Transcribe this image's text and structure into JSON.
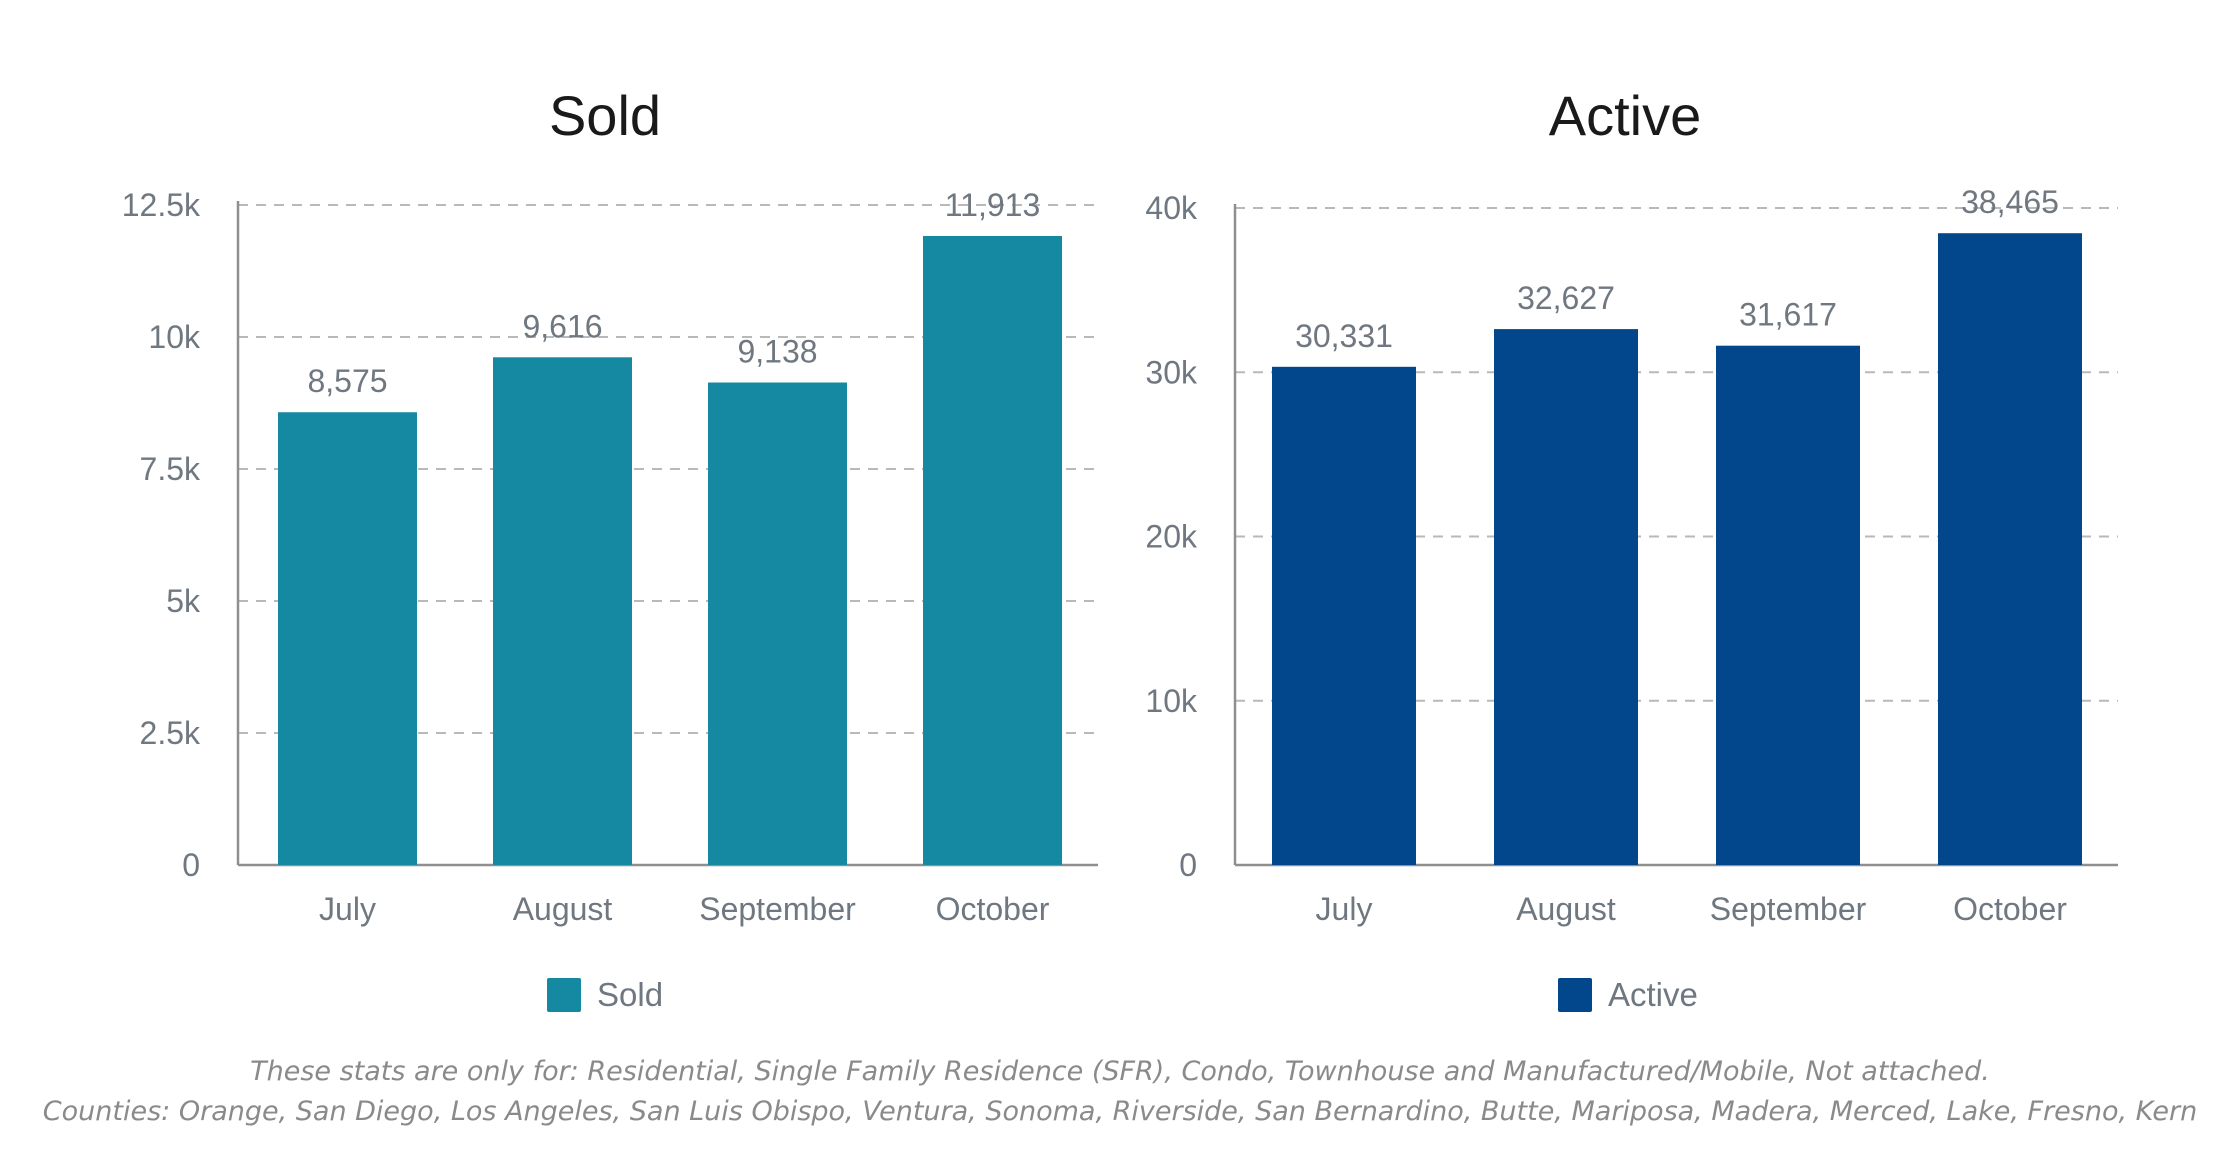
{
  "chart_data": [
    {
      "type": "bar",
      "title": "Sold",
      "categories": [
        "July",
        "August",
        "September",
        "October"
      ],
      "values": [
        8575,
        9616,
        9138,
        11913
      ],
      "value_labels": [
        "8,575",
        "9,616",
        "9,138",
        "11,913"
      ],
      "ylim": [
        0,
        12500
      ],
      "yticks": [
        0,
        2500,
        5000,
        7500,
        10000,
        12500
      ],
      "ytick_labels": [
        "0",
        "2.5k",
        "5k",
        "7.5k",
        "10k",
        "12.5k"
      ],
      "series": [
        {
          "name": "Sold",
          "values": [
            8575,
            9616,
            9138,
            11913
          ]
        }
      ],
      "color": "#1589a2",
      "grid": true,
      "grid_style": "dashed",
      "legend": "bottom-center"
    },
    {
      "type": "bar",
      "title": "Active",
      "categories": [
        "July",
        "August",
        "September",
        "October"
      ],
      "values": [
        30331,
        32627,
        31617,
        38465
      ],
      "value_labels": [
        "30,331",
        "32,627",
        "31,617",
        "38,465"
      ],
      "ylim": [
        0,
        40000
      ],
      "yticks": [
        0,
        10000,
        20000,
        30000,
        40000
      ],
      "ytick_labels": [
        "0",
        "10k",
        "20k",
        "30k",
        "40k"
      ],
      "series": [
        {
          "name": "Active",
          "values": [
            30331,
            32627,
            31617,
            38465
          ]
        }
      ],
      "color": "#02468b",
      "grid": true,
      "grid_style": "dashed",
      "legend": "bottom-center"
    }
  ],
  "footnote": {
    "line1": "These stats are only for: Residential, Single Family Residence (SFR), Condo, Townhouse and Manufactured/Mobile, Not attached.",
    "line2": "Counties: Orange, San Diego, Los Angeles, San Luis Obispo, Ventura, Sonoma, Riverside, San Bernardino, Butte, Mariposa, Madera, Merced, Lake, Fresno, Kern"
  },
  "colors": {
    "axis_text": "#6f7780",
    "title_text": "#1a1a1a",
    "grid": "#b9b9b9",
    "axis_line": "#8f8f8f",
    "value_label": "#6f7780"
  }
}
